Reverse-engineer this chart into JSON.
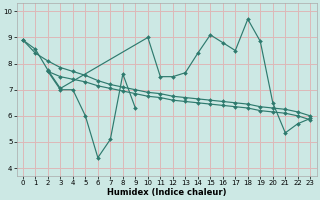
{
  "xlabel": "Humidex (Indice chaleur)",
  "bg_color": "#cce8e4",
  "grid_color": "#ddb8b8",
  "line_color": "#2e7a6e",
  "xlim": [
    -0.5,
    23.5
  ],
  "ylim": [
    3.7,
    10.3
  ],
  "yticks": [
    4,
    5,
    6,
    7,
    8,
    9,
    10
  ],
  "xticks": [
    0,
    1,
    2,
    3,
    4,
    5,
    6,
    7,
    8,
    9,
    10,
    11,
    12,
    13,
    14,
    15,
    16,
    17,
    18,
    19,
    20,
    21,
    22,
    23
  ],
  "series": [
    {
      "x": [
        0,
        1,
        2,
        3,
        10,
        11,
        12,
        13,
        14,
        15,
        16,
        17,
        18,
        19,
        20,
        21,
        22,
        23
      ],
      "y": [
        8.9,
        8.55,
        7.75,
        7.05,
        9.0,
        7.5,
        7.5,
        7.65,
        8.4,
        9.1,
        8.8,
        8.5,
        9.7,
        8.85,
        6.5,
        5.35,
        5.7,
        5.9
      ]
    },
    {
      "x": [
        2,
        3,
        4,
        5,
        6,
        7,
        8,
        9
      ],
      "y": [
        7.7,
        7.0,
        7.0,
        6.0,
        4.4,
        5.1,
        7.6,
        6.3
      ]
    },
    {
      "x": [
        0,
        1,
        2,
        3,
        4,
        5,
        6,
        7,
        8,
        9,
        10,
        11,
        12,
        13,
        14,
        15,
        16,
        17,
        18,
        19,
        20,
        21,
        22,
        23
      ],
      "y": [
        8.9,
        8.4,
        8.1,
        7.85,
        7.7,
        7.55,
        7.35,
        7.2,
        7.1,
        7.0,
        6.9,
        6.85,
        6.75,
        6.7,
        6.65,
        6.6,
        6.55,
        6.5,
        6.45,
        6.35,
        6.3,
        6.25,
        6.15,
        6.0
      ]
    },
    {
      "x": [
        2,
        3,
        4,
        5,
        6,
        7,
        8,
        9,
        10,
        11,
        12,
        13,
        14,
        15,
        16,
        17,
        18,
        19,
        20,
        21,
        22,
        23
      ],
      "y": [
        7.7,
        7.5,
        7.4,
        7.3,
        7.15,
        7.05,
        6.95,
        6.85,
        6.75,
        6.7,
        6.6,
        6.55,
        6.5,
        6.45,
        6.4,
        6.35,
        6.3,
        6.2,
        6.15,
        6.1,
        6.0,
        5.85
      ]
    }
  ]
}
